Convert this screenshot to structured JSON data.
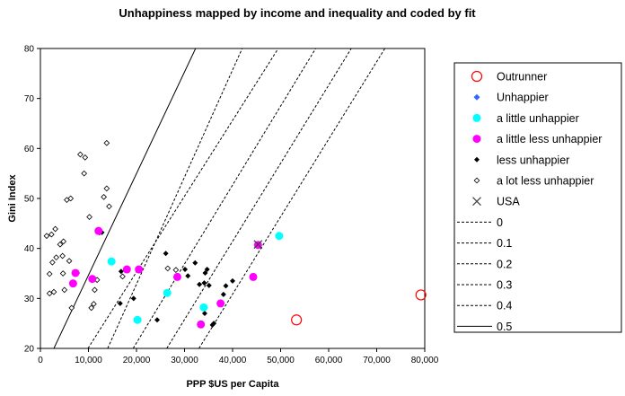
{
  "chart_data": {
    "type": "scatter",
    "title": "Unhappiness mapped by income and inequality and coded by fit",
    "xlabel": "PPP $US per Capita",
    "ylabel": "Gini Index",
    "xlim": [
      0,
      80000
    ],
    "ylim": [
      20,
      80
    ],
    "xticks": [
      0,
      10000,
      20000,
      30000,
      40000,
      50000,
      60000,
      70000,
      80000
    ],
    "xtick_labels": [
      "0",
      "10,000",
      "20,000",
      "30,000",
      "40,000",
      "50,000",
      "60,000",
      "70,000",
      "80,000"
    ],
    "yticks": [
      20,
      30,
      40,
      50,
      60,
      70,
      80
    ],
    "ytick_labels": [
      "20",
      "30",
      "40",
      "50",
      "60",
      "70",
      "80"
    ],
    "grid": false,
    "legend_position": "right",
    "colors": {
      "magenta": "#ff00ff",
      "cyan": "#00ffff",
      "red": "#ff0000",
      "blue": "#3366ff",
      "black": "#000000",
      "dark_gray": "#404040"
    },
    "series": [
      {
        "name": "Outrunner",
        "marker": "open-circle-red",
        "points": [
          [
            53300,
            25.7
          ],
          [
            79200,
            30.7
          ]
        ]
      },
      {
        "name": "Unhappier",
        "marker": "small-diamond-blue",
        "points": []
      },
      {
        "name": "a little unhappier",
        "marker": "cyan-dot",
        "points": [
          [
            14800,
            37.4
          ],
          [
            20200,
            25.7
          ],
          [
            26400,
            31.1
          ],
          [
            34000,
            28.2
          ],
          [
            49700,
            42.5
          ]
        ]
      },
      {
        "name": "a little less unhappier",
        "marker": "magenta-dot",
        "points": [
          [
            7300,
            35.1
          ],
          [
            6800,
            33.0
          ],
          [
            10800,
            33.9
          ],
          [
            12100,
            43.5
          ],
          [
            18000,
            35.8
          ],
          [
            20500,
            35.8
          ],
          [
            28500,
            34.3
          ],
          [
            33400,
            24.8
          ],
          [
            37500,
            29.0
          ],
          [
            44300,
            34.3
          ],
          [
            45300,
            40.7
          ]
        ]
      },
      {
        "name": "less unhappier",
        "marker": "black-diamond",
        "points": [
          [
            12800,
            43.2
          ],
          [
            16600,
            29.0
          ],
          [
            16800,
            35.4
          ],
          [
            19400,
            30.0
          ],
          [
            24300,
            25.7
          ],
          [
            26100,
            39.0
          ],
          [
            30100,
            35.8
          ],
          [
            30700,
            34.5
          ],
          [
            32200,
            37.1
          ],
          [
            33100,
            32.8
          ],
          [
            34300,
            35.1
          ],
          [
            34700,
            35.8
          ],
          [
            34100,
            33.1
          ],
          [
            35100,
            32.6
          ],
          [
            35800,
            24.7
          ],
          [
            36100,
            25.0
          ],
          [
            38100,
            30.8
          ],
          [
            38600,
            32.5
          ],
          [
            40000,
            33.5
          ],
          [
            34200,
            27.0
          ]
        ]
      },
      {
        "name": "a lot less unhappier",
        "marker": "open-diamond",
        "points": [
          [
            1300,
            42.5
          ],
          [
            1900,
            31.0
          ],
          [
            2300,
            42.8
          ],
          [
            2800,
            31.3
          ],
          [
            2500,
            37.2
          ],
          [
            3100,
            43.9
          ],
          [
            4100,
            40.8
          ],
          [
            4600,
            38.5
          ],
          [
            4800,
            41.4
          ],
          [
            5000,
            31.7
          ],
          [
            5500,
            49.7
          ],
          [
            6300,
            50.0
          ],
          [
            6500,
            28.1
          ],
          [
            7600,
            35.1
          ],
          [
            8300,
            58.8
          ],
          [
            9300,
            58.2
          ],
          [
            9100,
            55.0
          ],
          [
            10200,
            46.3
          ],
          [
            11100,
            28.9
          ],
          [
            11300,
            31.7
          ],
          [
            11800,
            33.7
          ],
          [
            13200,
            50.3
          ],
          [
            13800,
            52.0
          ],
          [
            14300,
            48.4
          ],
          [
            13800,
            61.1
          ],
          [
            10600,
            28.1
          ],
          [
            17100,
            34.4
          ],
          [
            12300,
            43.2
          ],
          [
            26500,
            36.0
          ],
          [
            28200,
            35.7
          ],
          [
            1900,
            34.9
          ],
          [
            6000,
            37.5
          ],
          [
            4700,
            35.0
          ],
          [
            3300,
            38.2
          ]
        ]
      },
      {
        "name": "USA",
        "marker": "x",
        "points": [
          [
            45300,
            40.8
          ]
        ]
      },
      {
        "name": "0",
        "line": "dashed",
        "points": [
          [
            14000,
            20
          ],
          [
            42000,
            80
          ]
        ]
      },
      {
        "name": "0.1",
        "line": "dashed",
        "points": [
          [
            9900,
            20
          ],
          [
            49500,
            80
          ]
        ]
      },
      {
        "name": "0.2",
        "line": "dashed",
        "points": [
          [
            19300,
            20
          ],
          [
            57300,
            80
          ]
        ]
      },
      {
        "name": "0.3",
        "line": "dashed",
        "points": [
          [
            26300,
            20
          ],
          [
            64700,
            80
          ]
        ]
      },
      {
        "name": "0.4",
        "line": "dashed",
        "points": [
          [
            33000,
            20
          ],
          [
            71700,
            80
          ]
        ]
      },
      {
        "name": "0.5",
        "line": "solid",
        "points": [
          [
            2800,
            20
          ],
          [
            32300,
            80
          ]
        ]
      }
    ]
  }
}
